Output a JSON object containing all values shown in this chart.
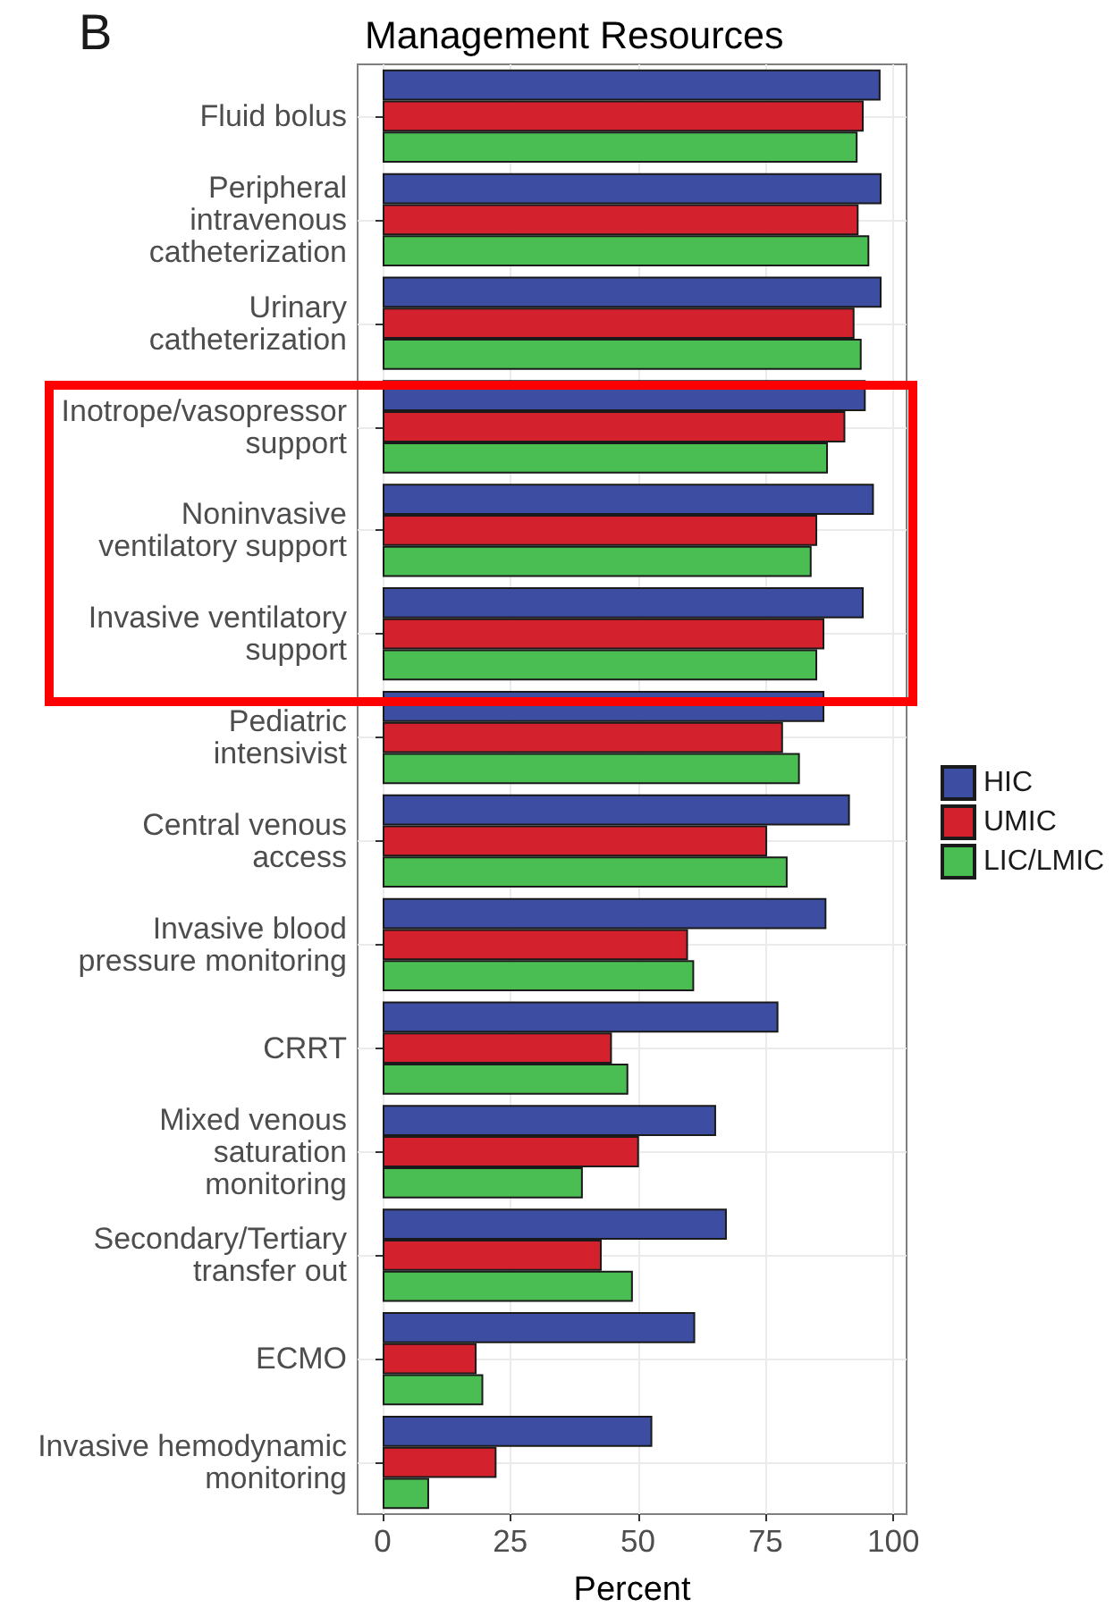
{
  "chart_data": {
    "type": "bar",
    "orientation": "horizontal",
    "title": "Management Resources",
    "xlabel": "Percent",
    "annotations": [
      "B"
    ],
    "categories": [
      "Fluid bolus",
      "Peripheral\nintravenous\ncatheterization",
      "Urinary\ncatheterization",
      "Inotrope/vasopressor\nsupport",
      "Noninvasive\nventilatory support",
      "Invasive ventilatory\nsupport",
      "Pediatric\nintensivist",
      "Central venous\naccess",
      "Invasive blood\npressure monitoring",
      "CRRT",
      "Mixed venous\nsaturation\nmonitoring",
      "Secondary/Tertiary\ntransfer out",
      "ECMO",
      "Invasive hemodynamic\nmonitoring"
    ],
    "series": [
      {
        "name": "HIC",
        "color": "#3d4da1",
        "values": [
          97.5,
          97.7,
          97.7,
          94.6,
          96.2,
          94.2,
          86.5,
          91.5,
          86.9,
          77.5,
          65.3,
          67.4,
          61.2,
          52.8
        ]
      },
      {
        "name": "UMIC",
        "color": "#d3222d",
        "values": [
          94.2,
          93.2,
          92.4,
          90.6,
          85.1,
          86.5,
          78.4,
          75.3,
          59.8,
          44.9,
          50.2,
          42.9,
          18.4,
          22.3
        ]
      },
      {
        "name": "LIC/LMIC",
        "color": "#4abd53",
        "values": [
          93.0,
          95.3,
          93.8,
          87.2,
          84.0,
          85.1,
          81.7,
          79.3,
          61.0,
          48.1,
          39.2,
          49.0,
          19.7,
          9.1
        ]
      }
    ],
    "xlim": [
      -4.9,
      102.6
    ],
    "xticks": [
      0,
      25,
      50,
      75,
      100
    ],
    "grid": true,
    "legend": "right"
  }
}
